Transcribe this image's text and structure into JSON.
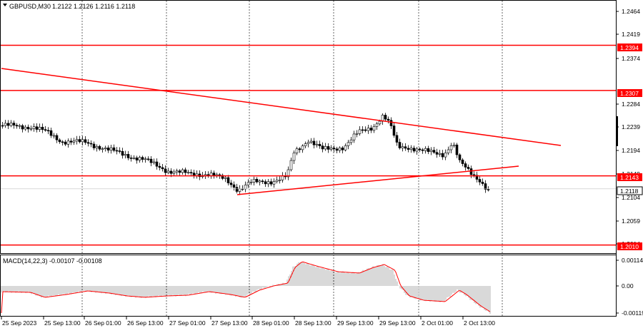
{
  "header": {
    "symbol": "GBPUSD,M30",
    "ohlc": "1.2122 1.2126 1.2116 1.2118"
  },
  "macd": {
    "label": "MACD(14,22,3) -0.00107 -0.00108",
    "ticks": [
      "0.00114",
      "0.00",
      "-0.00119"
    ],
    "hist_color": "#a0a0a0",
    "signal_color": "#ff0000"
  },
  "chart_data": {
    "type": "candlestick",
    "price_ticks": [
      "1.2464",
      "1.2419",
      "1.2374",
      "1.2284",
      "1.2239",
      "1.2194",
      "1.2149",
      "1.2104",
      "1.2059",
      "1.2014"
    ],
    "time_ticks": [
      "25 Sep 2023",
      "25 Sep 13:00",
      "26 Sep 01:00",
      "26 Sep 13:00",
      "27 Sep 01:00",
      "27 Sep 13:00",
      "28 Sep 01:00",
      "28 Sep 13:00",
      "29 Sep 13:00",
      "29 Sep 13:00",
      "2 Oct 01:00",
      "2 Oct 13:00"
    ],
    "ylim": [
      1.1993,
      1.2481
    ],
    "levels": [
      {
        "value": 1.2394,
        "label": "1.2394"
      },
      {
        "value": 1.2307,
        "label": "1.2307"
      },
      {
        "value": 1.2143,
        "label": "1.2143"
      },
      {
        "value": 1.201,
        "label": "1.2010"
      }
    ],
    "current_price": {
      "value": 1.2118,
      "label": "1.2118"
    },
    "line_color": "#ff0000",
    "grid": "vertical-dashed"
  }
}
